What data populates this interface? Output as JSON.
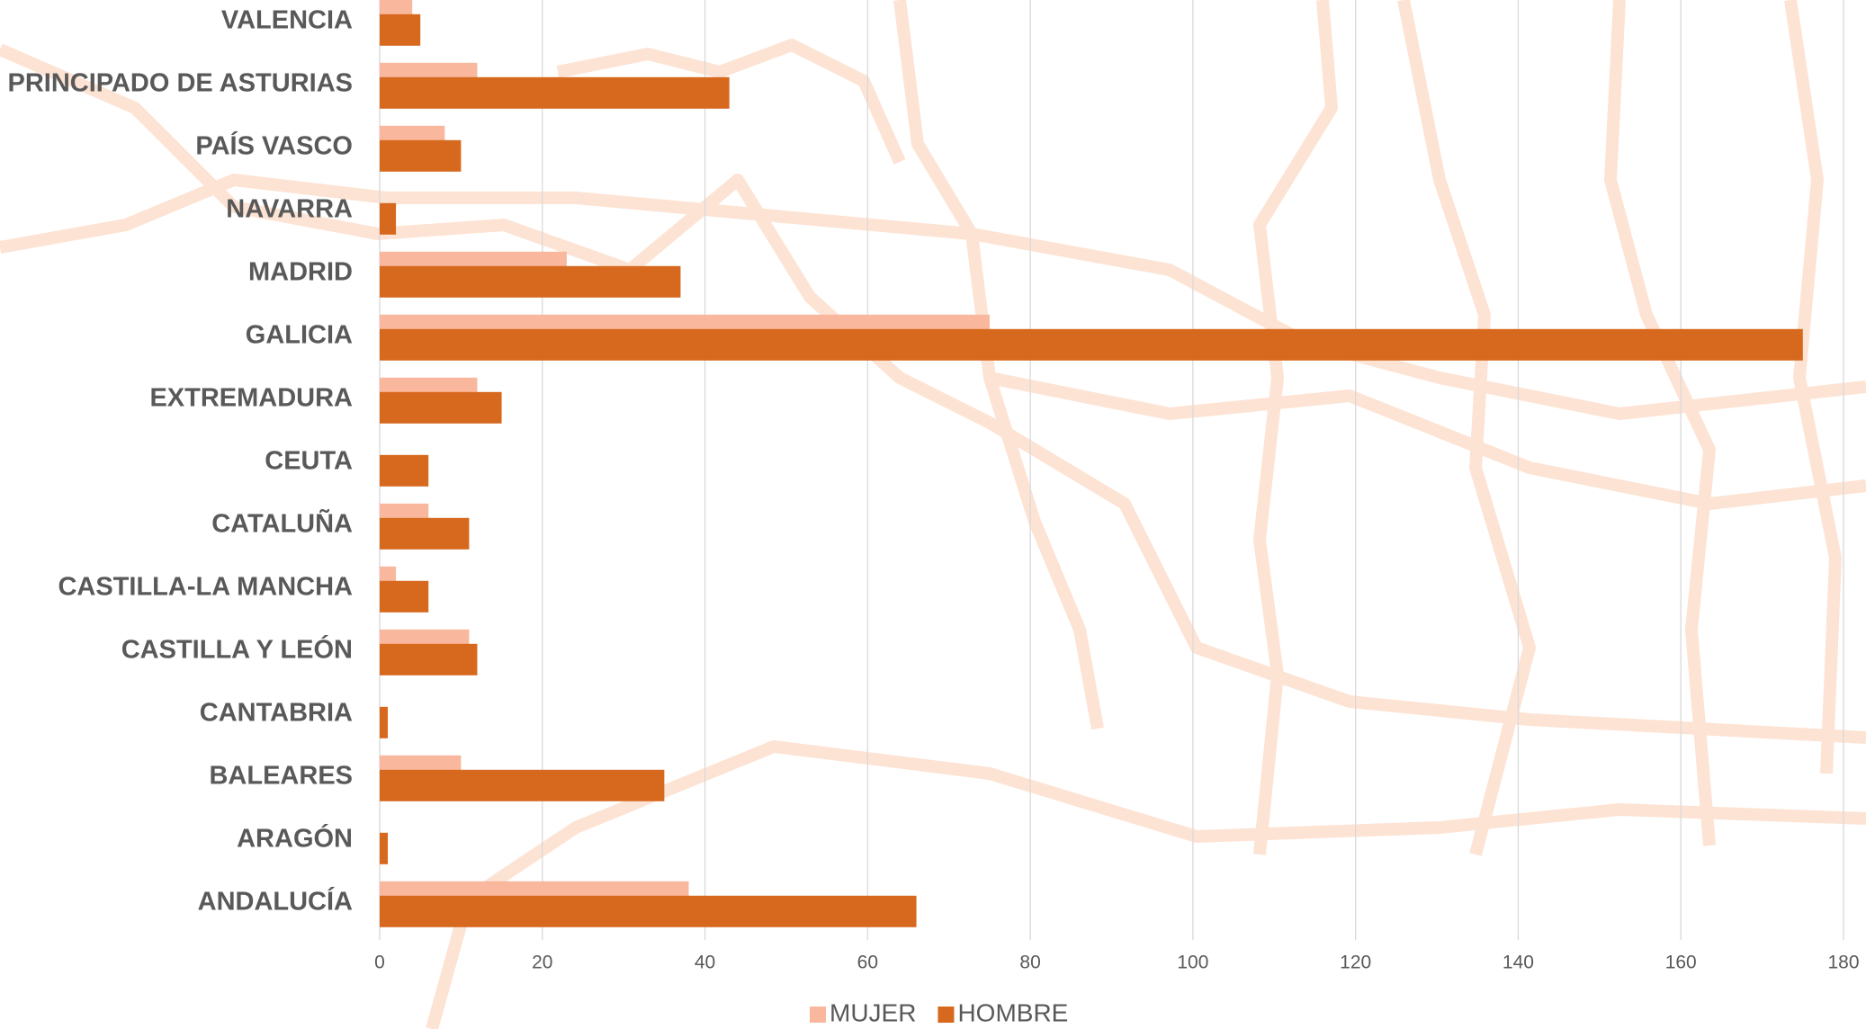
{
  "chart_data": {
    "type": "bar",
    "orientation": "horizontal",
    "categories": [
      "VALENCIA",
      "PRINCIPADO DE ASTURIAS",
      "PAÍS VASCO",
      "NAVARRA",
      "MADRID",
      "GALICIA",
      "EXTREMADURA",
      "CEUTA",
      "CATALUÑA",
      "CASTILLA-LA MANCHA",
      "CASTILLA Y LEÓN",
      "CANTABRIA",
      "BALEARES",
      "ARAGÓN",
      "ANDALUCÍA"
    ],
    "series": [
      {
        "name": "MUJER",
        "color": "#f9b89e",
        "values": [
          4,
          12,
          8,
          0,
          23,
          75,
          12,
          0,
          6,
          2,
          11,
          0,
          10,
          0,
          38
        ]
      },
      {
        "name": "HOMBRE",
        "color": "#d6691e",
        "values": [
          5,
          43,
          10,
          2,
          37,
          175,
          15,
          6,
          11,
          6,
          12,
          1,
          35,
          1,
          66
        ]
      }
    ],
    "xlim": [
      0,
      180
    ],
    "xticks": [
      0,
      20,
      40,
      60,
      80,
      100,
      120,
      140,
      160,
      180
    ],
    "grid": true,
    "legend": "bottom"
  }
}
